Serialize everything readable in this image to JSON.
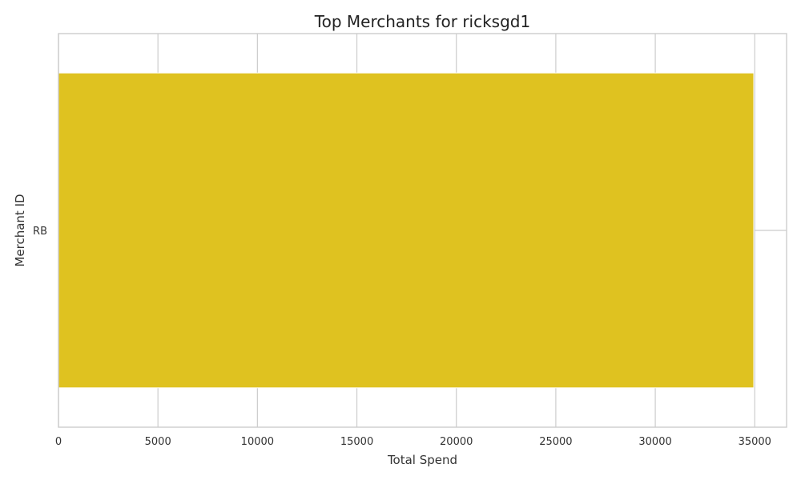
{
  "chart_data": {
    "type": "bar",
    "orientation": "horizontal",
    "title": "Top Merchants for ricksgd1",
    "xlabel": "Total Spend",
    "ylabel": "Merchant ID",
    "categories": [
      "RB"
    ],
    "values": [
      34950
    ],
    "xlim": [
      0,
      36600
    ],
    "x_ticks": [
      0,
      5000,
      10000,
      15000,
      20000,
      25000,
      30000,
      35000
    ],
    "grid": true,
    "colors": {
      "bar": "#dfc220",
      "grid": "#cccccc",
      "frame": "#cccccc",
      "text": "#333333",
      "title": "#222222"
    }
  }
}
